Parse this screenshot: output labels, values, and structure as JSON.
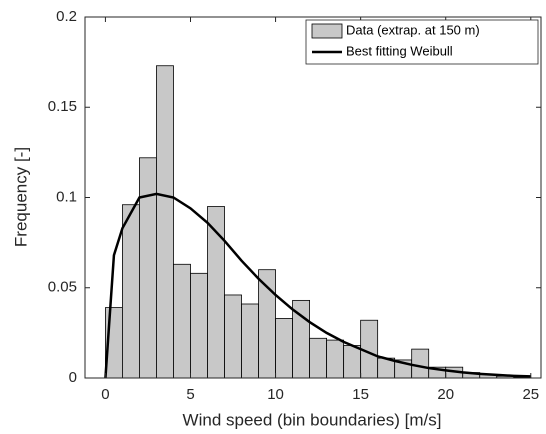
{
  "chart_data": {
    "type": "histogram",
    "xlabel": "Wind speed (bin boundaries) [m/s]",
    "ylabel": "Frequency [-]",
    "xlim": [
      -1.2,
      25.6
    ],
    "xticks": [
      0,
      5,
      10,
      15,
      20,
      25
    ],
    "ylim": [
      0,
      0.2
    ],
    "yticks": [
      0,
      0.05,
      0.1,
      0.15,
      0.2
    ],
    "legend": "northeast",
    "series": [
      {
        "name": "Data (extrap. at 150 m)",
        "type": "histogram",
        "color": "#c8c8c8",
        "bins": [
          0,
          1,
          2,
          3,
          4,
          5,
          6,
          7,
          8,
          9,
          10,
          11,
          12,
          13,
          14,
          15,
          16,
          17,
          18,
          19,
          20,
          21,
          22,
          23,
          24,
          25
        ],
        "values": [
          0.039,
          0.096,
          0.122,
          0.173,
          0.063,
          0.058,
          0.095,
          0.046,
          0.041,
          0.06,
          0.033,
          0.043,
          0.022,
          0.021,
          0.018,
          0.032,
          0.011,
          0.01,
          0.016,
          0.006,
          0.006,
          0.003,
          0.002,
          0.001,
          0.0005
        ]
      },
      {
        "name": "Best fitting Weibull",
        "type": "line",
        "color": "#000000",
        "x": [
          0,
          0.5,
          1,
          2,
          3,
          4,
          5,
          6,
          7,
          8,
          9,
          10,
          11,
          12,
          13,
          14,
          15,
          16,
          17,
          18,
          19,
          20,
          21,
          22,
          23,
          24,
          25
        ],
        "values": [
          0,
          0.068,
          0.083,
          0.1,
          0.102,
          0.1,
          0.094,
          0.086,
          0.076,
          0.065,
          0.055,
          0.046,
          0.038,
          0.031,
          0.025,
          0.02,
          0.016,
          0.012,
          0.0095,
          0.0073,
          0.0055,
          0.0042,
          0.0031,
          0.0023,
          0.0017,
          0.0012,
          0.0009
        ]
      }
    ]
  }
}
